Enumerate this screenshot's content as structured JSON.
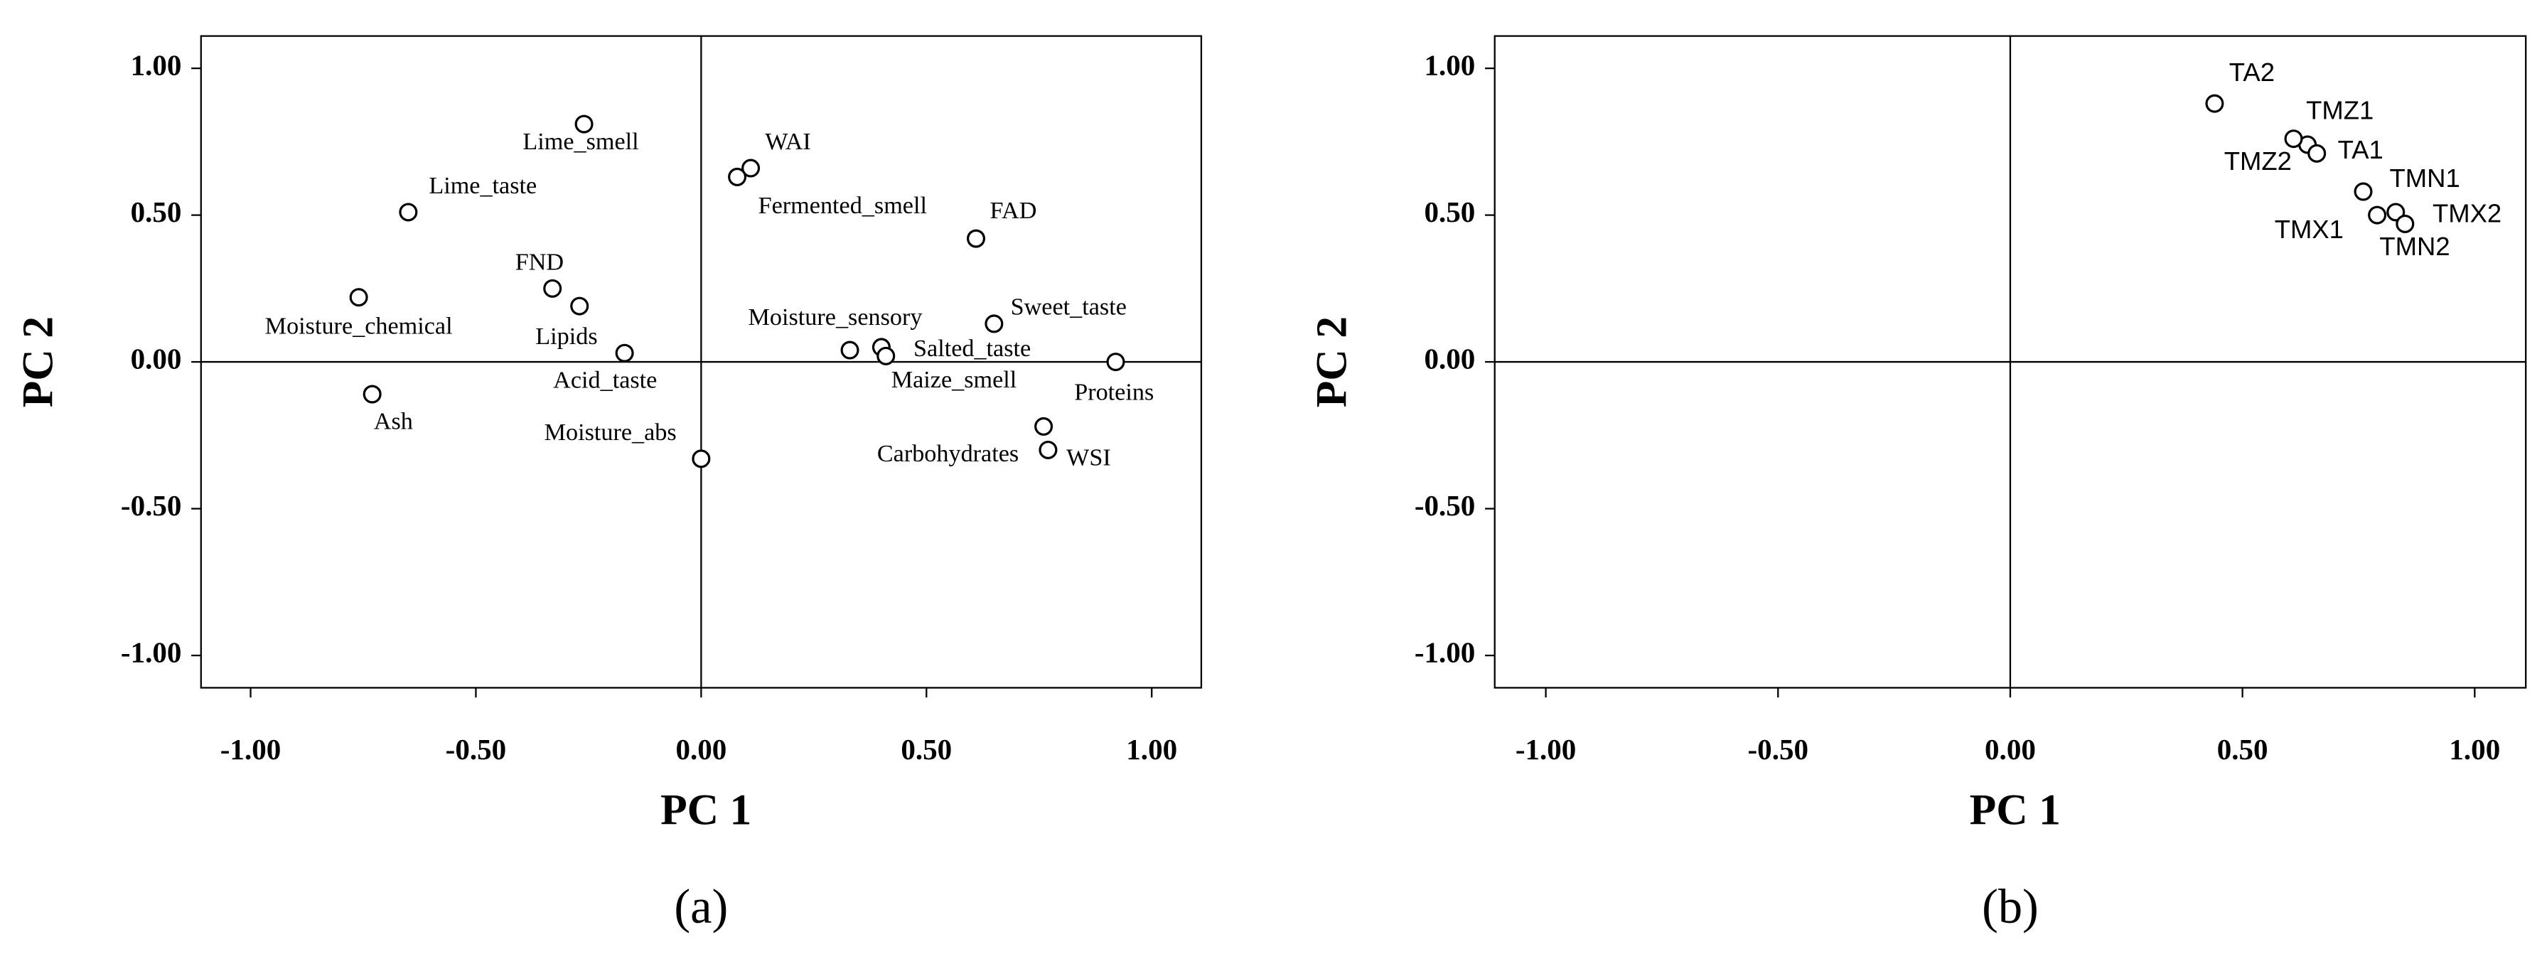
{
  "chart_data": [
    {
      "type": "scatter",
      "panel_label": "(a)",
      "xlabel": "PC 1",
      "ylabel": "PC 2",
      "xlim": [
        -1.11,
        1.11
      ],
      "ylim": [
        -1.11,
        1.11
      ],
      "xticks": [
        {
          "value": -1,
          "label": "-1.00"
        },
        {
          "value": -0.5,
          "label": "-0.50"
        },
        {
          "value": 0,
          "label": "0.00"
        },
        {
          "value": 0.5,
          "label": "0.50"
        },
        {
          "value": 1,
          "label": "1.00"
        }
      ],
      "yticks": [
        {
          "value": -1,
          "label": "-1.00"
        },
        {
          "value": -0.5,
          "label": "-0.50"
        },
        {
          "value": 0,
          "label": "0.00"
        },
        {
          "value": 0.5,
          "label": "0.50"
        },
        {
          "value": 1,
          "label": "1.00"
        }
      ],
      "point_labels": [
        "Lime_smell",
        "WAI",
        "Fermented_smell",
        "Lime_taste",
        "FAD",
        "Moisture_chemical",
        "FND",
        "Lipids",
        "Acid_taste",
        "Sweet_taste",
        "Moisture_sensory",
        "Salted_taste",
        "Maize_smell",
        "Proteins",
        "Ash",
        "Moisture_abs",
        "Carbohydrates",
        "WSI"
      ],
      "x": [
        -0.26,
        0.11,
        0.08,
        -0.65,
        0.61,
        -0.76,
        -0.33,
        -0.27,
        -0.17,
        0.65,
        0.33,
        0.4,
        0.41,
        0.92,
        -0.73,
        0.0,
        0.76,
        0.77
      ],
      "values": [
        0.81,
        0.66,
        0.63,
        0.51,
        0.42,
        0.22,
        0.25,
        0.19,
        0.03,
        0.13,
        0.04,
        0.05,
        0.02,
        0.0,
        -0.11,
        -0.33,
        -0.22,
        -0.3
      ]
    },
    {
      "type": "scatter",
      "panel_label": "(b)",
      "xlabel": "PC 1",
      "ylabel": "PC 2",
      "xlim": [
        -1.11,
        1.11
      ],
      "ylim": [
        -1.11,
        1.11
      ],
      "xticks": [
        {
          "value": -1,
          "label": "-1.00"
        },
        {
          "value": -0.5,
          "label": "-0.50"
        },
        {
          "value": 0,
          "label": "0.00"
        },
        {
          "value": 0.5,
          "label": "0.50"
        },
        {
          "value": 1,
          "label": "1.00"
        }
      ],
      "yticks": [
        {
          "value": -1,
          "label": "-1.00"
        },
        {
          "value": -0.5,
          "label": "-0.50"
        },
        {
          "value": 0,
          "label": "0.00"
        },
        {
          "value": 0.5,
          "label": "0.50"
        },
        {
          "value": 1,
          "label": "1.00"
        }
      ],
      "point_labels": [
        "TA2",
        "TMZ1",
        "TMZ2",
        "TA1",
        "TMN1",
        "TMX1",
        "TMX2",
        "TMN2"
      ],
      "x": [
        0.44,
        0.64,
        0.61,
        0.66,
        0.76,
        0.79,
        0.83,
        0.85
      ],
      "values": [
        0.88,
        0.74,
        0.76,
        0.71,
        0.58,
        0.5,
        0.51,
        0.47
      ]
    }
  ]
}
